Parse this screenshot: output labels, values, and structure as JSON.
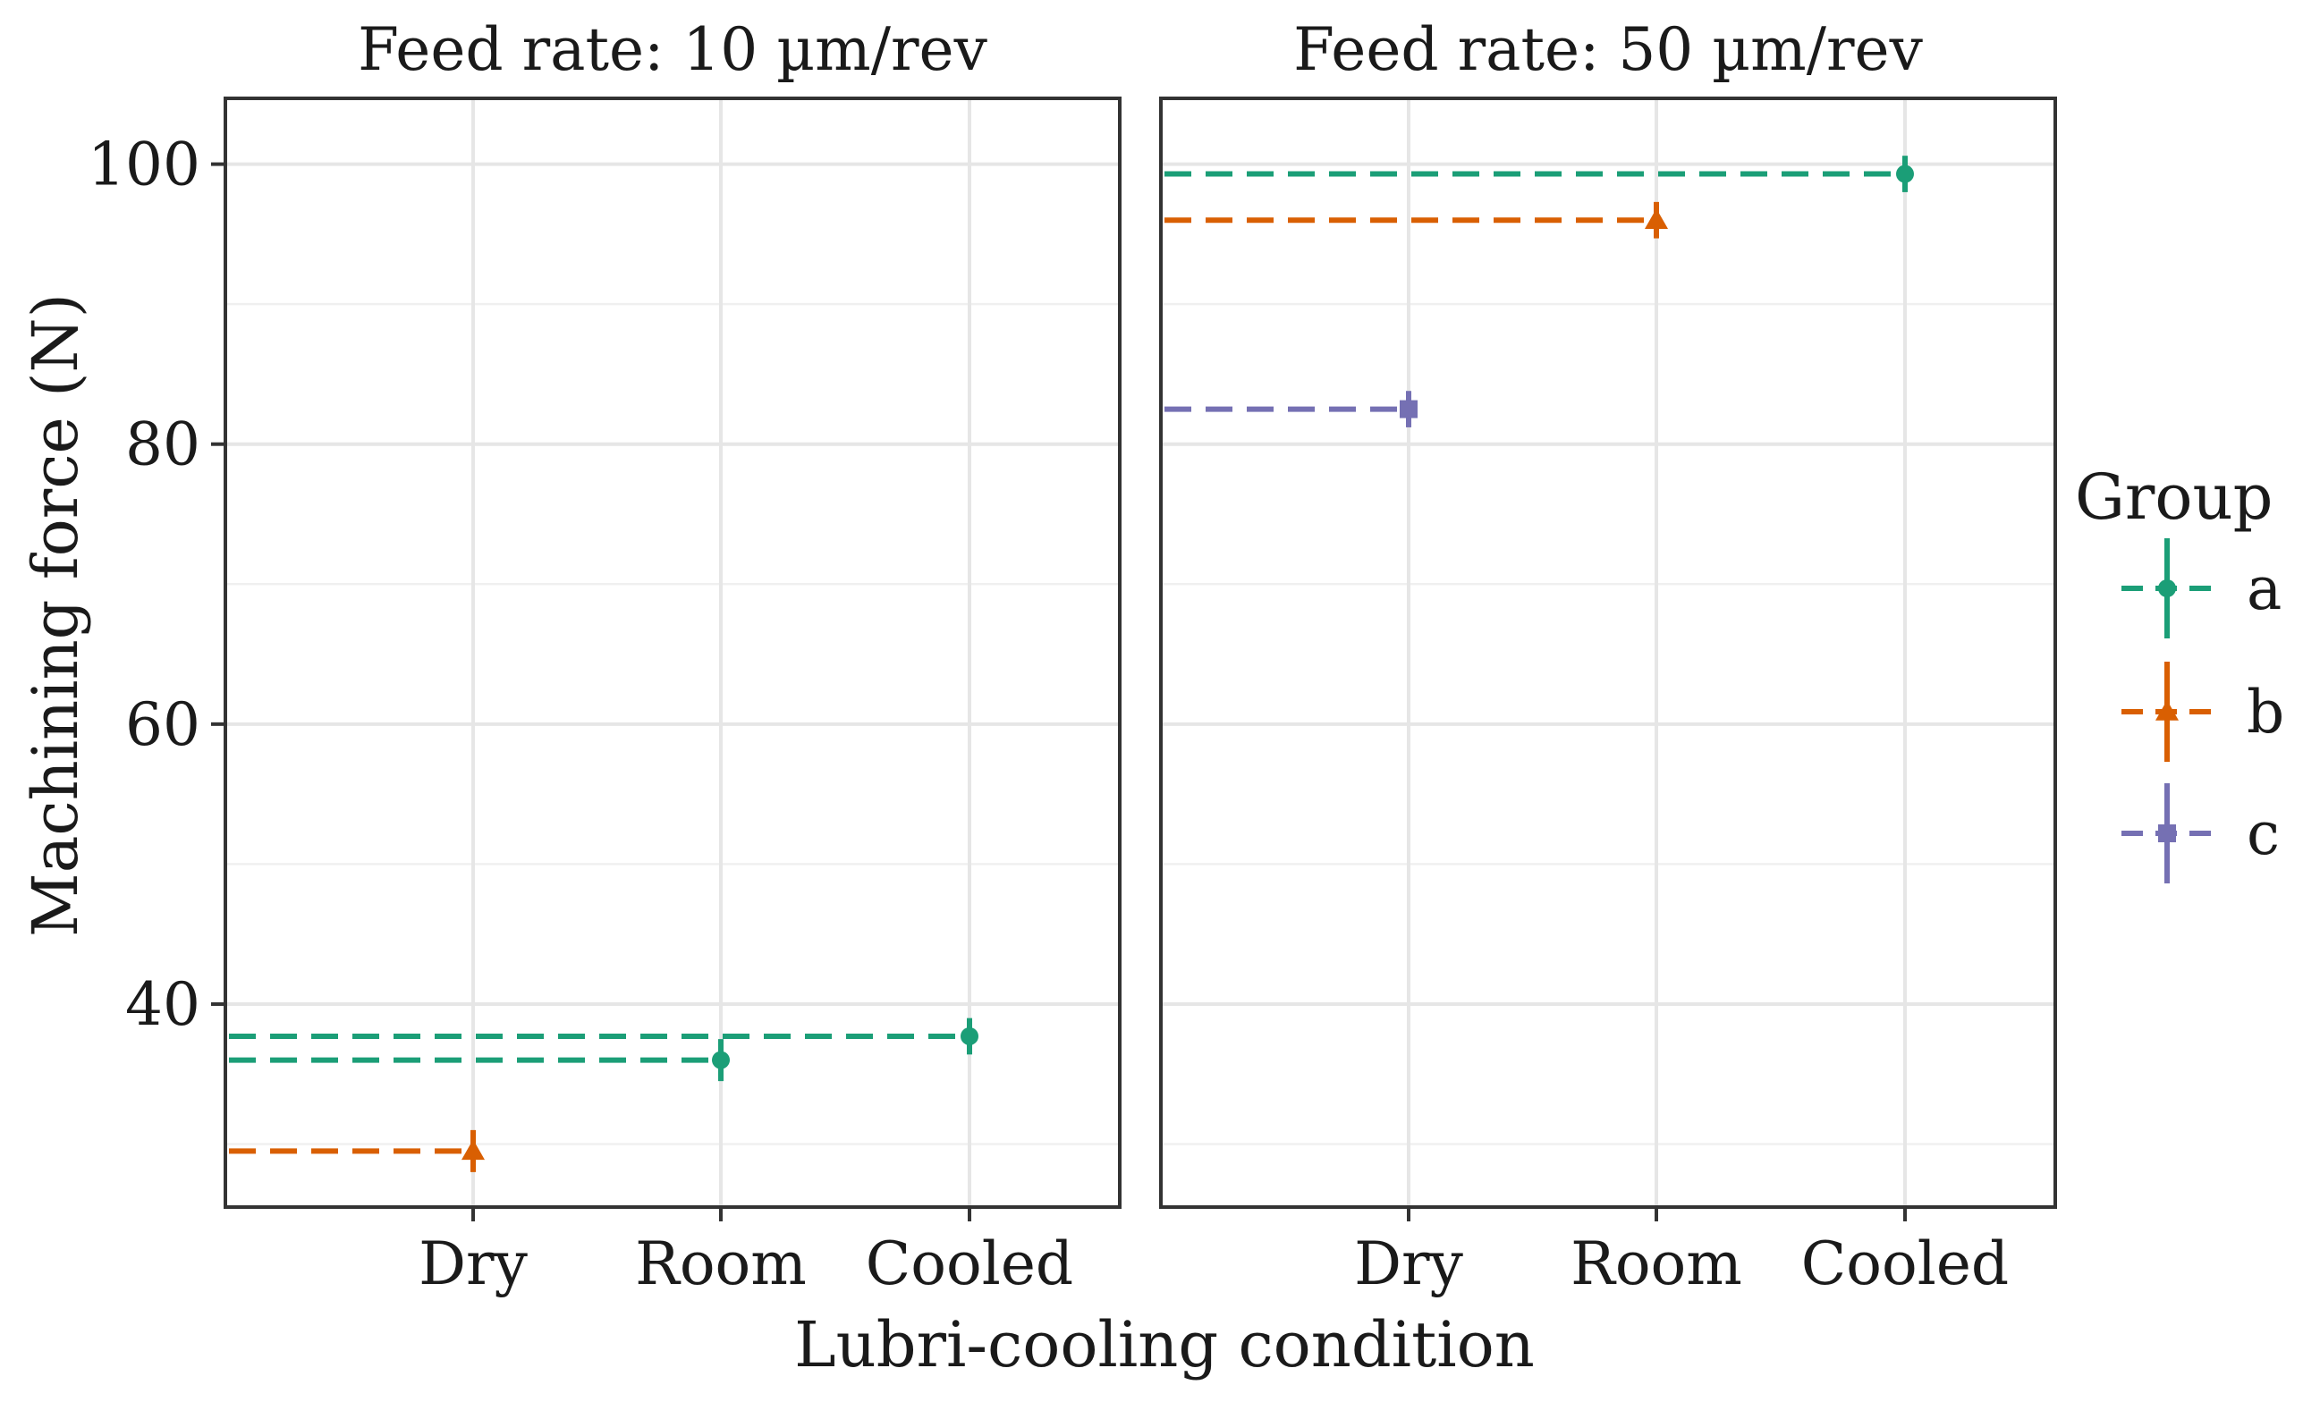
{
  "chart_data": {
    "type": "scatter",
    "title": "",
    "xlabel": "Lubri-cooling condition",
    "ylabel": "Machining force (N)",
    "categories": [
      "Dry",
      "Room",
      "Cooled"
    ],
    "yticks": [
      40,
      60,
      80,
      100
    ],
    "ylim": [
      25.5,
      104.7
    ],
    "grid": true,
    "legend": {
      "title": "Group",
      "position": "right",
      "entries": [
        {
          "key": "a",
          "label": "a",
          "color": "#1b9e77",
          "shape": "circle"
        },
        {
          "key": "b",
          "label": "b",
          "color": "#d95f02",
          "shape": "triangle"
        },
        {
          "key": "c",
          "label": "c",
          "color": "#7570b3",
          "shape": "square"
        }
      ]
    },
    "panels": [
      {
        "title": "Feed rate: 10 µm/rev",
        "points": [
          {
            "category": "Dry",
            "group": "b",
            "value": 29.5,
            "error": 1.5
          },
          {
            "category": "Room",
            "group": "a",
            "value": 36.0,
            "error": 1.5
          },
          {
            "category": "Cooled",
            "group": "a",
            "value": 37.7,
            "error": 1.3
          }
        ]
      },
      {
        "title": "Feed rate: 50 µm/rev",
        "points": [
          {
            "category": "Dry",
            "group": "c",
            "value": 82.5,
            "error": 1.3
          },
          {
            "category": "Room",
            "group": "b",
            "value": 96.0,
            "error": 1.3
          },
          {
            "category": "Cooled",
            "group": "a",
            "value": 99.3,
            "error": 1.3
          }
        ]
      }
    ]
  }
}
